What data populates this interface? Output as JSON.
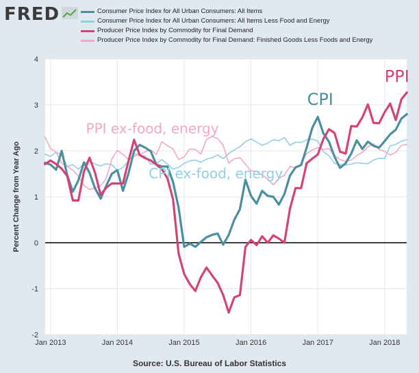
{
  "logo": {
    "text": "FRED"
  },
  "source": "Source: U.S. Bureau of Labor Statistics",
  "chart_data": {
    "type": "line",
    "title": "",
    "xlabel": "",
    "ylabel": "Percent Change from Year Ago",
    "ylim": [
      -2,
      4
    ],
    "xlim": [
      2012.92,
      2018.33
    ],
    "yticks": [
      -2,
      -1,
      0,
      1,
      2,
      3,
      4
    ],
    "xticks": [
      {
        "label": "Jan 2013",
        "value": 2013.0
      },
      {
        "label": "Jan 2014",
        "value": 2014.0
      },
      {
        "label": "Jan 2015",
        "value": 2015.0
      },
      {
        "label": "Jan 2016",
        "value": 2016.0
      },
      {
        "label": "Jan 2017",
        "value": 2017.0
      },
      {
        "label": "Jan 2018",
        "value": 2018.0
      }
    ],
    "grid": true,
    "start": 2012.917,
    "step": 0.08333,
    "series": [
      {
        "name": "Consumer Price Index for All Urban Consumers: All Items",
        "color": "#4a8fa0",
        "width": 3.2,
        "values": [
          1.74,
          1.7,
          1.59,
          2.0,
          1.47,
          1.11,
          1.36,
          1.75,
          1.52,
          1.18,
          0.96,
          1.24,
          1.5,
          1.58,
          1.13,
          1.51,
          2.0,
          2.13,
          2.07,
          1.99,
          1.7,
          1.66,
          1.66,
          1.32,
          0.76,
          -0.09,
          -0.02,
          -0.09,
          0.02,
          0.12,
          0.17,
          0.2,
          -0.04,
          0.17,
          0.5,
          0.73,
          1.37,
          1.02,
          0.85,
          1.13,
          1.02,
          1.0,
          0.83,
          1.06,
          1.46,
          1.64,
          1.69,
          2.07,
          2.5,
          2.74,
          2.38,
          2.2,
          1.87,
          1.63,
          1.73,
          1.94,
          2.23,
          2.04,
          2.2,
          2.11,
          2.07,
          2.21,
          2.36,
          2.46,
          2.7,
          2.8
        ]
      },
      {
        "name": "Consumer Price Index for All Urban Consumers: All Items Less Food and Energy",
        "color": "#8fd1e3",
        "width": 1.6,
        "values": [
          1.93,
          1.88,
          1.97,
          1.92,
          1.66,
          1.7,
          1.6,
          1.73,
          1.78,
          1.71,
          1.67,
          1.72,
          1.7,
          1.57,
          1.64,
          1.78,
          1.93,
          1.92,
          1.88,
          1.71,
          1.72,
          1.81,
          1.71,
          1.6,
          1.64,
          1.73,
          1.78,
          1.8,
          1.75,
          1.82,
          1.85,
          1.91,
          1.83,
          1.94,
          2.02,
          2.09,
          2.2,
          2.26,
          2.19,
          2.12,
          2.17,
          2.24,
          2.22,
          2.29,
          2.12,
          2.19,
          2.18,
          2.24,
          2.26,
          2.21,
          1.98,
          1.89,
          1.73,
          1.7,
          1.69,
          1.71,
          1.74,
          1.73,
          1.72,
          1.8,
          1.84,
          1.83,
          2.11,
          2.14,
          2.21,
          2.24
        ]
      },
      {
        "name": "Producer Price Index by Commodity for Final Demand",
        "color": "#d54277",
        "width": 3.2,
        "values": [
          1.71,
          1.79,
          1.71,
          1.61,
          1.45,
          0.92,
          0.92,
          1.55,
          1.85,
          1.52,
          1.04,
          1.2,
          1.29,
          1.29,
          1.29,
          1.78,
          2.24,
          1.91,
          1.84,
          1.79,
          1.7,
          1.6,
          1.4,
          0.94,
          -0.24,
          -0.68,
          -0.9,
          -1.05,
          -0.75,
          -0.54,
          -0.71,
          -0.87,
          -1.14,
          -1.52,
          -1.19,
          -1.14,
          -0.09,
          0.06,
          -0.05,
          0.14,
          0.0,
          0.16,
          0.09,
          0.0,
          0.74,
          1.19,
          1.19,
          1.73,
          1.83,
          1.92,
          2.26,
          2.47,
          2.39,
          1.98,
          1.94,
          2.54,
          2.53,
          2.73,
          3.01,
          2.61,
          2.6,
          2.84,
          3.03,
          2.67,
          3.12,
          3.27
        ]
      },
      {
        "name": "Producer Price Index by Commodity for Final Demand: Finished Goods Less Foods and Energy",
        "color": "#f2a8c3",
        "width": 1.6,
        "values": [
          2.3,
          2.05,
          1.97,
          1.73,
          1.66,
          1.58,
          1.45,
          1.25,
          1.16,
          1.19,
          1.24,
          1.4,
          1.82,
          2.01,
          1.92,
          1.81,
          1.88,
          1.92,
          1.98,
          2.02,
          1.92,
          2.2,
          2.11,
          2.04,
          1.81,
          1.87,
          2.04,
          2.03,
          1.93,
          2.25,
          2.31,
          2.27,
          2.12,
          1.73,
          1.83,
          1.85,
          1.71,
          1.56,
          1.56,
          1.47,
          1.39,
          1.26,
          1.4,
          1.47,
          1.66,
          1.63,
          1.72,
          1.94,
          2.02,
          2.07,
          2.03,
          2.05,
          1.9,
          1.81,
          1.77,
          1.8,
          1.9,
          1.97,
          2.09,
          2.15,
          2.03,
          1.99,
          1.91,
          1.97,
          2.12,
          2.14
        ]
      }
    ],
    "annotations": [
      {
        "text": "CPI",
        "color": "#4a8fa0",
        "x": 2016.84,
        "y": 3.0
      },
      {
        "text": "PPI",
        "color": "#d54277",
        "x": 2018.0,
        "y": 3.5
      },
      {
        "text": "PPI ex-food, energy",
        "color": "#f2a8c3",
        "x": 2013.53,
        "y": 2.38
      },
      {
        "text": "CPI ex-food, energy",
        "color": "#8fd1e3",
        "x": 2014.47,
        "y": 1.4
      }
    ]
  }
}
